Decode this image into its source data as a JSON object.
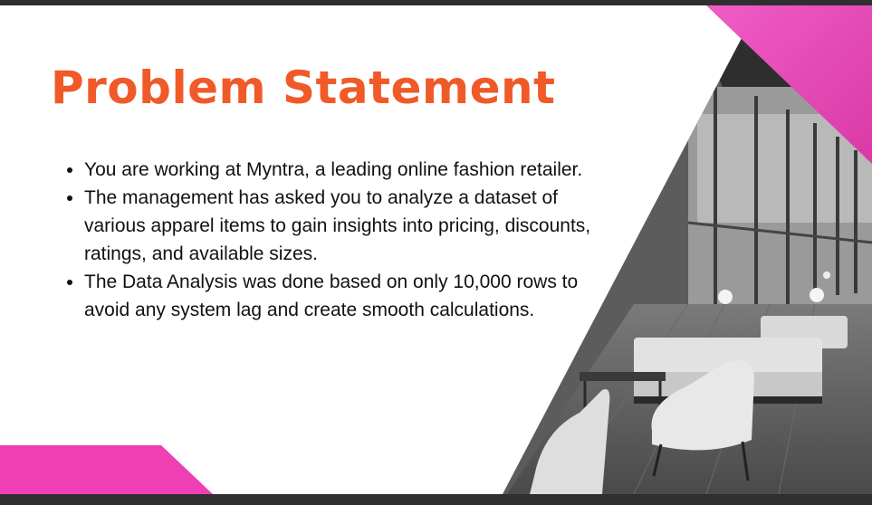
{
  "slide": {
    "title": "Problem Statement",
    "bullets": [
      "You are working at Myntra, a leading online fashion retailer.",
      "The management has asked you to analyze a dataset of various apparel items to gain insights into pricing, discounts, ratings, and available sizes.",
      "The Data Analysis was done based on only 10,000 rows to avoid any system lag and create smooth calculations."
    ]
  },
  "colors": {
    "title": "#f05a28",
    "accent_pink": "#ee3fb4",
    "text": "#111111",
    "frame": "#2f2f2f"
  }
}
